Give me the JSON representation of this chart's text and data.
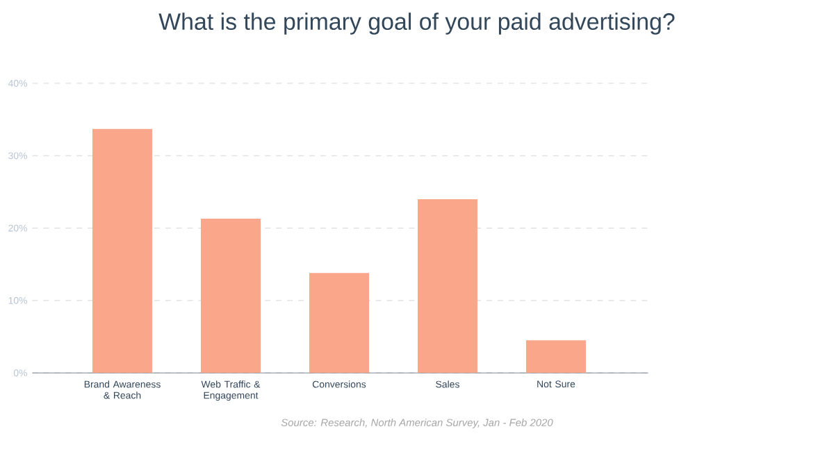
{
  "chart_data": {
    "type": "bar",
    "title": "What is the primary goal of your paid advertising?",
    "categories": [
      "Brand Awareness & Reach",
      "Web Traffic & Engagement",
      "Conversions",
      "Sales",
      "Not Sure"
    ],
    "values": [
      33.7,
      21.3,
      13.8,
      24.0,
      4.5
    ],
    "color": "#f9a68b",
    "ylim": [
      0,
      40
    ],
    "yticks": [
      {
        "value": 0,
        "label": "0%"
      },
      {
        "value": 10,
        "label": "10%"
      },
      {
        "value": 20,
        "label": "20%"
      },
      {
        "value": 30,
        "label": "30%"
      },
      {
        "value": 40,
        "label": "40%"
      }
    ],
    "grid": "y",
    "annotations": [
      "Source: Research, North American Survey, Jan - Feb 2020"
    ]
  }
}
